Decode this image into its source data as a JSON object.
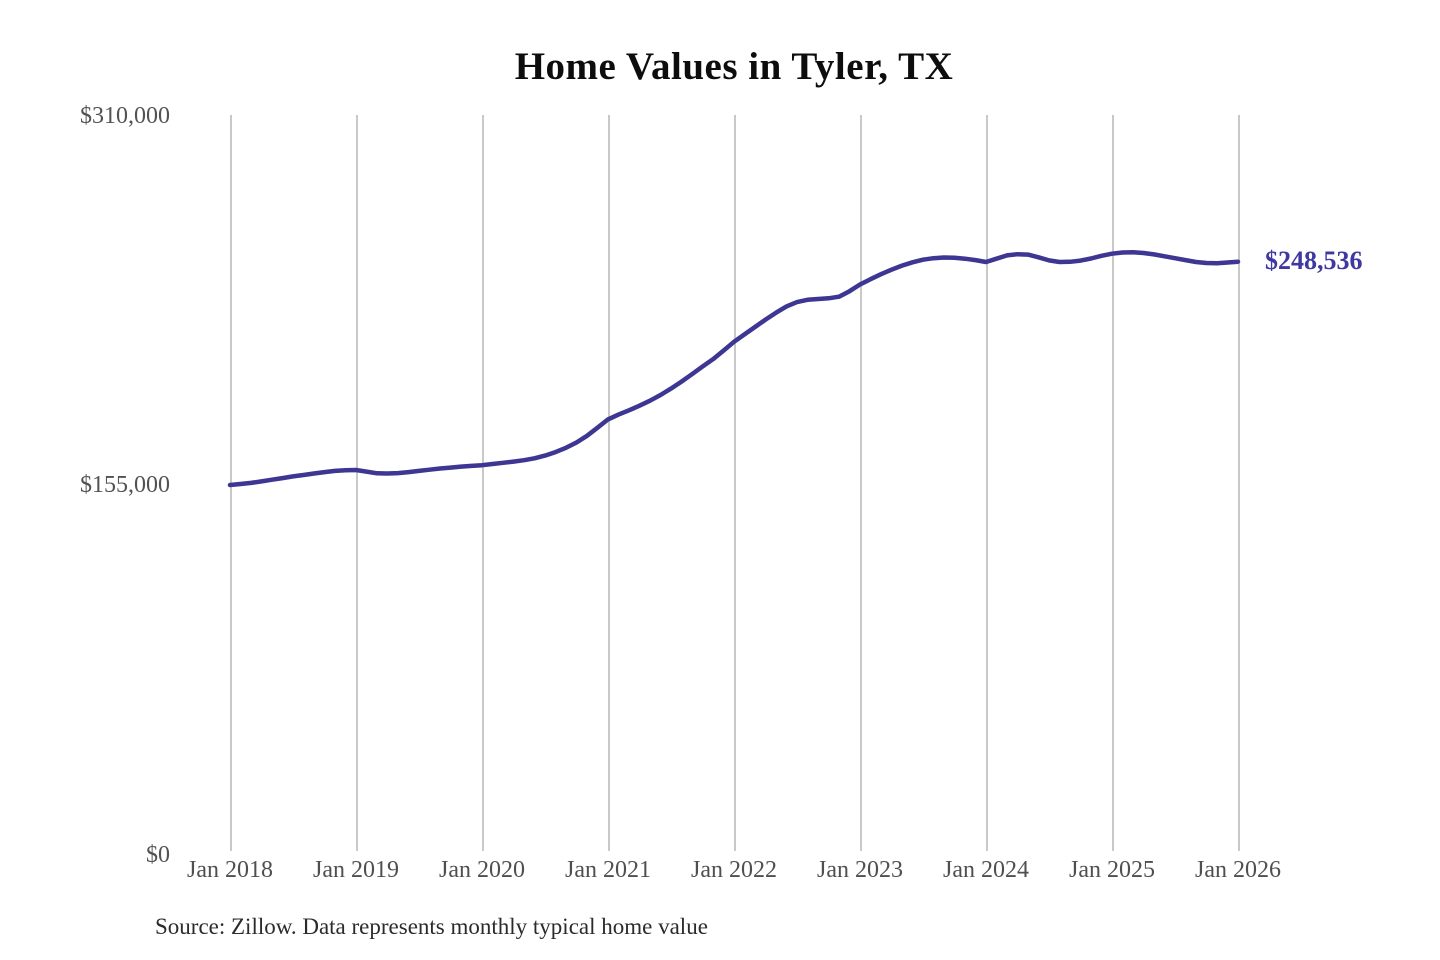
{
  "chart_data": {
    "type": "line",
    "title": "Home Values in Tyler, TX",
    "source_note": "Source: Zillow. Data represents monthly typical home value",
    "x_tick_labels": [
      "Jan 2018",
      "Jan 2019",
      "Jan 2020",
      "Jan 2021",
      "Jan 2022",
      "Jan 2023",
      "Jan 2024",
      "Jan 2025",
      "Jan 2026"
    ],
    "y_tick_labels": [
      "$310,000",
      "$155,000",
      "$0"
    ],
    "y_tick_values": [
      310000,
      155000,
      0
    ],
    "ylim": [
      0,
      310000
    ],
    "x_start_month": "2018-01",
    "x_end_month": "2026-01",
    "grid": "vertical-only",
    "legend": "none",
    "end_label": "$248,536",
    "end_value": 248536,
    "series": [
      {
        "name": "Monthly typical home value",
        "color": "#3d3693",
        "monthly_values": [
          155000,
          155400,
          155900,
          156500,
          157200,
          157900,
          158600,
          159200,
          159800,
          160400,
          160900,
          161200,
          161300,
          160600,
          159900,
          159800,
          160000,
          160400,
          160900,
          161400,
          161900,
          162300,
          162700,
          163000,
          163300,
          163800,
          164300,
          164800,
          165400,
          166200,
          167300,
          168800,
          170600,
          172800,
          175600,
          179000,
          182500,
          184500,
          186300,
          188200,
          190300,
          192700,
          195400,
          198300,
          201400,
          204600,
          207700,
          211300,
          215000,
          218100,
          221200,
          224300,
          227200,
          229800,
          231600,
          232600,
          232900,
          233200,
          233900,
          236200,
          239000,
          241200,
          243300,
          245200,
          246900,
          248300,
          249400,
          250000,
          250300,
          250200,
          249800,
          249200,
          248400,
          249800,
          251200,
          251700,
          251500,
          250400,
          249100,
          248400,
          248500,
          249000,
          249900,
          251000,
          251900,
          252400,
          252500,
          252200,
          251600,
          250800,
          250000,
          249200,
          248400,
          248000,
          247900,
          248200,
          248536
        ]
      }
    ],
    "colors": {
      "line": "#3d3693",
      "end_label": "#3f38a0",
      "axis_text": "#525252",
      "gridline": "#c9c9c9",
      "title": "#0d0d0d",
      "source": "#2b2b2b",
      "background": "#ffffff"
    }
  }
}
